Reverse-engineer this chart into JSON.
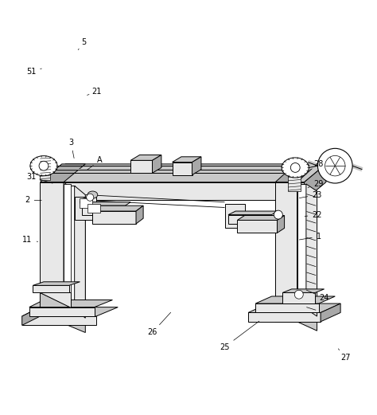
{
  "background_color": "#ffffff",
  "line_color": "#000000",
  "line_width": 0.7,
  "fc_light": "#e8e8e8",
  "fc_mid": "#c8c8c8",
  "fc_dark": "#a8a8a8",
  "fc_white": "#ffffff",
  "figsize": [
    4.74,
    5.21
  ],
  "dpi": 100,
  "annotations": {
    "1": [
      0.86,
      0.42,
      0.8,
      0.41
    ],
    "2": [
      0.055,
      0.52,
      0.1,
      0.52
    ],
    "3": [
      0.175,
      0.68,
      0.185,
      0.63
    ],
    "5": [
      0.21,
      0.955,
      0.195,
      0.935
    ],
    "11": [
      0.055,
      0.41,
      0.09,
      0.405
    ],
    "21": [
      0.245,
      0.82,
      0.22,
      0.81
    ],
    "22": [
      0.855,
      0.48,
      0.815,
      0.475
    ],
    "23": [
      0.855,
      0.535,
      0.8,
      0.525
    ],
    "24": [
      0.875,
      0.25,
      0.82,
      0.275
    ],
    "25": [
      0.6,
      0.115,
      0.7,
      0.19
    ],
    "26": [
      0.4,
      0.155,
      0.455,
      0.215
    ],
    "27": [
      0.935,
      0.085,
      0.91,
      0.115
    ],
    "28": [
      0.86,
      0.62,
      0.825,
      0.615
    ],
    "29": [
      0.86,
      0.565,
      0.83,
      0.555
    ],
    "31": [
      0.065,
      0.585,
      0.13,
      0.565
    ],
    "51": [
      0.065,
      0.875,
      0.1,
      0.885
    ],
    "A": [
      0.255,
      0.63,
      0.215,
      0.6
    ]
  }
}
